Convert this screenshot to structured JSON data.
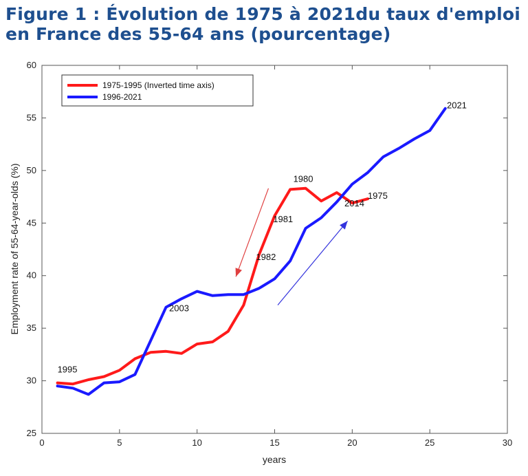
{
  "figure": {
    "title": "Figure 1 : Évolution de 1975 à 2021du taux d'emploi en France des 55-64 ans (pourcentage)"
  },
  "chart_data": {
    "type": "line",
    "xlabel": "years",
    "ylabel": "Employment rate of 55-64-year-olds (%)",
    "xlim": [
      0,
      30
    ],
    "ylim": [
      25,
      60
    ],
    "xticks": [
      0,
      5,
      10,
      15,
      20,
      25,
      30
    ],
    "yticks": [
      25,
      30,
      35,
      40,
      45,
      50,
      55,
      60
    ],
    "grid": false,
    "legend_position": "top-left",
    "series": [
      {
        "name": "1975-1995 (Inverted time axis)",
        "color": "#ff1a1a",
        "x": [
          1,
          2,
          3,
          4,
          5,
          6,
          7,
          8,
          9,
          10,
          11,
          12,
          13,
          14,
          15,
          16,
          17,
          18,
          19,
          20,
          21
        ],
        "y": [
          29.8,
          29.7,
          30.1,
          30.4,
          31.0,
          32.1,
          32.7,
          32.8,
          32.6,
          33.5,
          33.7,
          34.7,
          37.2,
          42.0,
          45.7,
          48.2,
          48.3,
          47.1,
          47.9,
          46.9,
          47.3
        ]
      },
      {
        "name": "1996-2021",
        "color": "#1a1aff",
        "x": [
          1,
          2,
          3,
          4,
          5,
          6,
          7,
          8,
          9,
          10,
          11,
          12,
          13,
          14,
          15,
          16,
          17,
          18,
          19,
          20,
          21,
          22,
          23,
          24,
          25,
          26
        ],
        "y": [
          29.5,
          29.3,
          28.7,
          29.8,
          29.9,
          30.6,
          33.8,
          37.0,
          37.8,
          38.5,
          38.1,
          38.2,
          38.2,
          38.8,
          39.7,
          41.4,
          44.5,
          45.5,
          47.0,
          48.7,
          49.8,
          51.3,
          52.1,
          53.0,
          53.8,
          55.9
        ]
      }
    ],
    "annotations": [
      {
        "text": "1995",
        "x": 1.0,
        "y": 30.8
      },
      {
        "text": "2003",
        "x": 8.2,
        "y": 36.6
      },
      {
        "text": "1982",
        "x": 13.8,
        "y": 41.5
      },
      {
        "text": "1981",
        "x": 14.9,
        "y": 45.1
      },
      {
        "text": "1980",
        "x": 16.2,
        "y": 48.9
      },
      {
        "text": "2014",
        "x": 19.5,
        "y": 46.6
      },
      {
        "text": "1975",
        "x": 21.0,
        "y": 47.3
      },
      {
        "text": "2021",
        "x": 26.1,
        "y": 55.9
      }
    ],
    "arrows": [
      {
        "color": "#e04040",
        "from": [
          14.6,
          48.3
        ],
        "to": [
          12.5,
          39.9
        ]
      },
      {
        "color": "#3333dd",
        "from": [
          15.2,
          37.2
        ],
        "to": [
          19.7,
          45.2
        ]
      }
    ]
  }
}
